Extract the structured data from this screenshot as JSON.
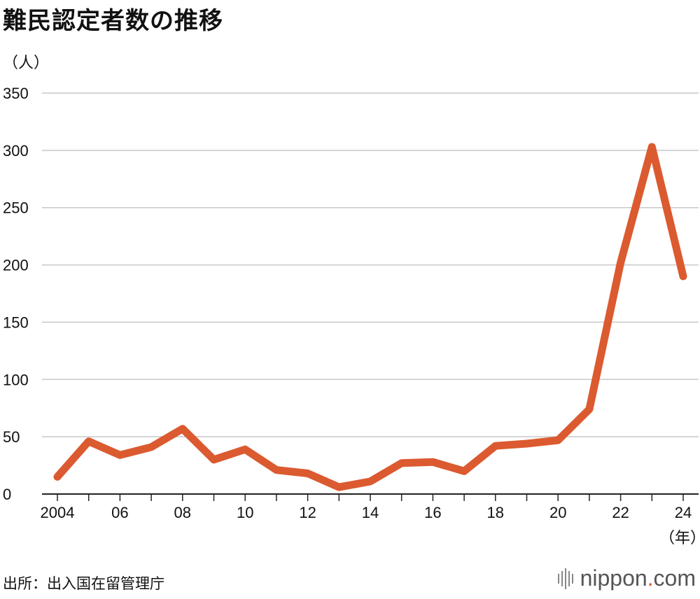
{
  "title": "難民認定者数の推移",
  "unit_label": "（人）",
  "year_unit_label": "（年）",
  "source": "出所：出入国在留管理庁",
  "logo": {
    "prefix": "nippon",
    "dot": ".",
    "suffix": "com"
  },
  "colors": {
    "line": "#db5a30",
    "grid": "#c8c8c8",
    "axis": "#222222"
  },
  "chart_data": {
    "type": "line",
    "title": "難民認定者数の推移",
    "ylabel": "（人）",
    "xlabel": "（年）",
    "ylim": [
      0,
      350
    ],
    "yticks": [
      0,
      50,
      100,
      150,
      200,
      250,
      300,
      350
    ],
    "xtick_labels": [
      {
        "year": 2004,
        "label": "2004"
      },
      {
        "year": 2006,
        "label": "06"
      },
      {
        "year": 2008,
        "label": "08"
      },
      {
        "year": 2010,
        "label": "10"
      },
      {
        "year": 2012,
        "label": "12"
      },
      {
        "year": 2014,
        "label": "14"
      },
      {
        "year": 2016,
        "label": "16"
      },
      {
        "year": 2018,
        "label": "18"
      },
      {
        "year": 2020,
        "label": "20"
      },
      {
        "year": 2022,
        "label": "22"
      },
      {
        "year": 2024,
        "label": "24"
      }
    ],
    "x": [
      2004,
      2005,
      2006,
      2007,
      2008,
      2009,
      2010,
      2011,
      2012,
      2013,
      2014,
      2015,
      2016,
      2017,
      2018,
      2019,
      2020,
      2021,
      2022,
      2023,
      2024
    ],
    "y": [
      15,
      46,
      34,
      41,
      57,
      30,
      39,
      21,
      18,
      6,
      11,
      27,
      28,
      20,
      42,
      44,
      47,
      74,
      202,
      303,
      190
    ],
    "grid": true
  }
}
